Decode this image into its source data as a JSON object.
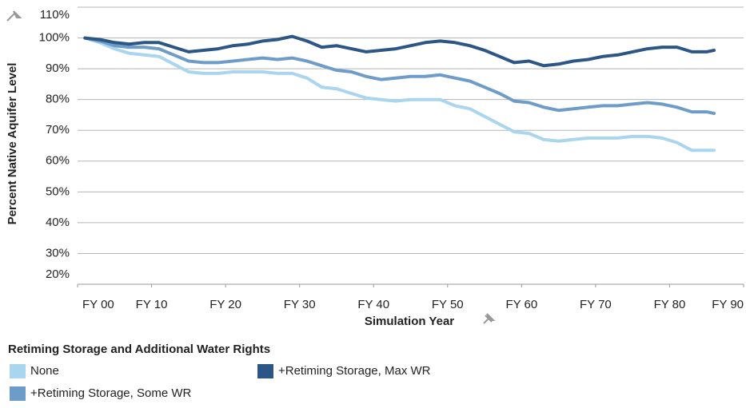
{
  "chart_data": {
    "type": "line",
    "x_label": "Simulation Year",
    "y_label": "Percent Native Aquifer Level",
    "legend_title": "Retiming Storage and Additional Water Rights",
    "xlim": [
      0,
      90
    ],
    "xticks": [
      {
        "value": 0,
        "label": "FY 00"
      },
      {
        "value": 10,
        "label": "FY 10"
      },
      {
        "value": 20,
        "label": "FY 20"
      },
      {
        "value": 30,
        "label": "FY 30"
      },
      {
        "value": 40,
        "label": "FY 40"
      },
      {
        "value": 50,
        "label": "FY 50"
      },
      {
        "value": 60,
        "label": "FY 60"
      },
      {
        "value": 70,
        "label": "FY 70"
      },
      {
        "value": 80,
        "label": "FY 80"
      },
      {
        "value": 90,
        "label": "FY 90"
      }
    ],
    "ylim": [
      20,
      110
    ],
    "yticks": [
      {
        "value": 20,
        "label": "20%"
      },
      {
        "value": 30,
        "label": "30%"
      },
      {
        "value": 40,
        "label": "40%"
      },
      {
        "value": 50,
        "label": "50%"
      },
      {
        "value": 60,
        "label": "60%"
      },
      {
        "value": 70,
        "label": "70%"
      },
      {
        "value": 80,
        "label": "80%"
      },
      {
        "value": 90,
        "label": "90%"
      },
      {
        "value": 100,
        "label": "100%"
      },
      {
        "value": 110,
        "label": "110%"
      }
    ],
    "grid": true,
    "x": [
      1,
      3,
      5,
      7,
      9,
      11,
      13,
      15,
      17,
      19,
      21,
      23,
      25,
      27,
      29,
      31,
      33,
      35,
      37,
      39,
      41,
      43,
      45,
      47,
      49,
      51,
      53,
      55,
      57,
      59,
      61,
      63,
      65,
      67,
      69,
      71,
      73,
      75,
      77,
      79,
      81,
      83,
      85,
      86
    ],
    "series": [
      {
        "name": "None",
        "color": "#a9d5ef",
        "values": [
          100,
          98.5,
          96.5,
          95,
          94.5,
          94,
          91.5,
          89,
          88.5,
          88.5,
          89,
          89,
          89,
          88.5,
          88.5,
          87,
          84,
          83.5,
          82,
          80.5,
          80,
          79.5,
          80,
          80,
          80,
          78,
          77,
          74.5,
          72,
          69.5,
          69,
          67,
          66.5,
          67,
          67.5,
          67.5,
          67.5,
          68,
          68,
          67.5,
          66,
          63.5,
          63.5,
          63.5
        ]
      },
      {
        "name": "+Retiming Storage, Some WR",
        "color": "#6e9cc9",
        "values": [
          100,
          99,
          97.5,
          97,
          97,
          96.5,
          94.5,
          92.5,
          92,
          92,
          92.5,
          93,
          93.5,
          93,
          93.5,
          92.5,
          91,
          89.5,
          89,
          87.5,
          86.5,
          87,
          87.5,
          87.5,
          88,
          87,
          86,
          84,
          82,
          79.5,
          79,
          77.5,
          76.5,
          77,
          77.5,
          78,
          78,
          78.5,
          79,
          78.5,
          77.5,
          76,
          76,
          75.5
        ]
      },
      {
        "name": "+Retiming Storage, Max WR",
        "color": "#2c5685",
        "values": [
          100,
          99.5,
          98.5,
          98,
          98.5,
          98.5,
          97,
          95.5,
          96,
          96.5,
          97.5,
          98,
          99,
          99.5,
          100.5,
          99,
          97,
          97.5,
          96.5,
          95.5,
          96,
          96.5,
          97.5,
          98.5,
          99,
          98.5,
          97.5,
          96,
          94,
          92,
          92.5,
          91,
          91.5,
          92.5,
          93,
          94,
          94.5,
          95.5,
          96.5,
          97,
          97,
          95.5,
          95.5,
          96
        ]
      }
    ]
  }
}
